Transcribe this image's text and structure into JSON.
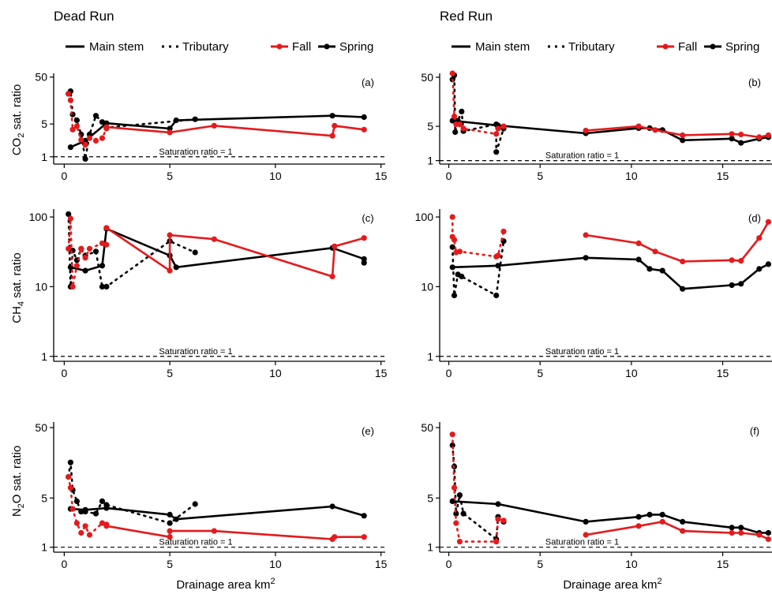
{
  "column_titles": [
    "Dead Run",
    "Red Run"
  ],
  "legend": {
    "main_stem": "Main stem",
    "tributary": "Tributary",
    "fall": "Fall",
    "spring": "Spring",
    "colors": {
      "fall": "#e41a1c",
      "spring": "#000000"
    }
  },
  "x_axis_title": "Drainage area km",
  "x_axis_title_sup": "2",
  "saturation_label": "Saturation ratio = 1",
  "row_labels": [
    {
      "pre": "CO",
      "sub": "2",
      "post": " sat. ratio"
    },
    {
      "pre": "CH",
      "sub": "4",
      "post": " sat. ratio"
    },
    {
      "pre": "N",
      "sub": "2",
      "post": "O sat. ratio"
    }
  ],
  "chart_data": [
    {
      "panel": "(a)",
      "site": "Dead Run",
      "gas": "CO2",
      "type": "line",
      "x_ticks": [
        0,
        5,
        10,
        15
      ],
      "y_ticks": [
        1,
        5,
        50
      ],
      "xlim": [
        -0.5,
        15.2
      ],
      "ylim": [
        0.7,
        60
      ],
      "y_scale": "log",
      "series": [
        {
          "season": "spring",
          "kind": "main",
          "points": [
            [
              0.3,
              1.6
            ],
            [
              1.0,
              2.2
            ],
            [
              2.0,
              5.2
            ],
            [
              5.0,
              4.0
            ],
            [
              5.3,
              6.0
            ],
            [
              12.7,
              7.5
            ],
            [
              14.2,
              7.0
            ]
          ]
        },
        {
          "season": "spring",
          "kind": "trib",
          "points": [
            [
              0.2,
              22
            ],
            [
              0.3,
              25
            ],
            [
              0.4,
              8
            ],
            [
              0.6,
              6
            ],
            [
              0.8,
              3
            ],
            [
              1.0,
              0.9
            ],
            [
              1.2,
              3
            ],
            [
              1.5,
              7.5
            ],
            [
              1.8,
              5.5
            ],
            [
              2.0,
              4.2
            ],
            [
              6.2,
              6.3
            ]
          ]
        },
        {
          "season": "fall",
          "kind": "main",
          "points": [
            [
              2.0,
              4.3
            ],
            [
              5.0,
              3.3
            ],
            [
              7.1,
              4.6
            ],
            [
              12.7,
              2.8
            ],
            [
              12.8,
              4.6
            ],
            [
              14.2,
              3.8
            ]
          ]
        },
        {
          "season": "fall",
          "kind": "trib",
          "points": [
            [
              0.2,
              22
            ],
            [
              0.3,
              16
            ],
            [
              0.4,
              3.8
            ],
            [
              0.6,
              4.5
            ],
            [
              0.8,
              2.3
            ],
            [
              1.0,
              1.8
            ],
            [
              1.2,
              2.5
            ],
            [
              1.5,
              2.2
            ],
            [
              1.8,
              2.5
            ],
            [
              2.0,
              4.0
            ]
          ]
        }
      ]
    },
    {
      "panel": "(b)",
      "site": "Red Run",
      "gas": "CO2",
      "type": "line",
      "x_ticks": [
        0,
        5,
        10,
        15
      ],
      "y_ticks": [
        1,
        5,
        50
      ],
      "xlim": [
        -0.5,
        17.7
      ],
      "ylim": [
        0.85,
        60
      ],
      "y_scale": "log",
      "series": [
        {
          "season": "spring",
          "kind": "main",
          "points": [
            [
              0.2,
              6.5
            ],
            [
              2.7,
              5.2
            ],
            [
              7.5,
              3.6
            ],
            [
              10.4,
              4.6
            ],
            [
              11.0,
              4.6
            ],
            [
              11.7,
              4.2
            ],
            [
              12.8,
              2.6
            ],
            [
              15.5,
              2.8
            ],
            [
              16.0,
              2.3
            ],
            [
              17.0,
              2.8
            ],
            [
              17.5,
              3.0
            ]
          ]
        },
        {
          "season": "spring",
          "kind": "trib",
          "points": [
            [
              0.2,
              45
            ],
            [
              0.3,
              55
            ],
            [
              0.35,
              3.8
            ],
            [
              0.5,
              6.5
            ],
            [
              0.7,
              10
            ],
            [
              0.8,
              4.0
            ],
            [
              2.6,
              5.5
            ],
            [
              2.6,
              1.5
            ],
            [
              3.0,
              4.5
            ]
          ]
        },
        {
          "season": "fall",
          "kind": "main",
          "points": [
            [
              7.5,
              4.1
            ],
            [
              10.4,
              5.0
            ],
            [
              11.3,
              4.2
            ],
            [
              12.8,
              3.3
            ],
            [
              15.5,
              3.5
            ],
            [
              16.0,
              3.4
            ],
            [
              17.0,
              3.0
            ],
            [
              17.5,
              3.3
            ]
          ]
        },
        {
          "season": "fall",
          "kind": "trib",
          "points": [
            [
              0.2,
              60
            ],
            [
              0.3,
              8
            ],
            [
              0.4,
              5.5
            ],
            [
              0.6,
              5.5
            ],
            [
              0.8,
              4.5
            ],
            [
              2.6,
              3.5
            ],
            [
              2.7,
              4.5
            ],
            [
              3.0,
              5.0
            ]
          ]
        }
      ]
    },
    {
      "panel": "(c)",
      "site": "Dead Run",
      "gas": "CH4",
      "type": "line",
      "x_ticks": [
        0,
        5,
        10,
        15
      ],
      "y_ticks": [
        1,
        10,
        100
      ],
      "xlim": [
        -0.5,
        15.2
      ],
      "ylim": [
        0.85,
        130
      ],
      "y_scale": "log",
      "series": [
        {
          "season": "spring",
          "kind": "main",
          "points": [
            [
              0.3,
              19
            ],
            [
              1.0,
              17
            ],
            [
              1.8,
              20
            ],
            [
              2.0,
              68
            ],
            [
              5.0,
              28
            ],
            [
              5.3,
              19
            ],
            [
              12.7,
              36
            ],
            [
              14.2,
              25
            ],
            [
              14.2,
              22
            ]
          ]
        },
        {
          "season": "spring",
          "kind": "trib",
          "points": [
            [
              0.2,
              110
            ],
            [
              0.3,
              10
            ],
            [
              0.4,
              33
            ],
            [
              0.6,
              24
            ],
            [
              0.8,
              35
            ],
            [
              1.0,
              28
            ],
            [
              1.5,
              32
            ],
            [
              1.8,
              10
            ],
            [
              2.0,
              10
            ],
            [
              5.0,
              45
            ],
            [
              6.2,
              31
            ]
          ]
        },
        {
          "season": "fall",
          "kind": "main",
          "points": [
            [
              2.0,
              70
            ],
            [
              5.0,
              17
            ],
            [
              5.0,
              55
            ],
            [
              7.1,
              48
            ],
            [
              12.7,
              14
            ],
            [
              12.8,
              38
            ],
            [
              14.2,
              50
            ]
          ]
        },
        {
          "season": "fall",
          "kind": "trib",
          "points": [
            [
              0.2,
              35
            ],
            [
              0.3,
              95
            ],
            [
              0.4,
              10
            ],
            [
              0.6,
              20
            ],
            [
              0.8,
              35
            ],
            [
              1.0,
              26
            ],
            [
              1.2,
              35
            ],
            [
              1.8,
              42
            ],
            [
              2.0,
              40
            ]
          ]
        }
      ]
    },
    {
      "panel": "(d)",
      "site": "Red Run",
      "gas": "CH4",
      "type": "line",
      "x_ticks": [
        0,
        5,
        10,
        15
      ],
      "y_ticks": [
        1,
        10,
        100
      ],
      "xlim": [
        -0.5,
        17.7
      ],
      "ylim": [
        0.85,
        130
      ],
      "y_scale": "log",
      "series": [
        {
          "season": "spring",
          "kind": "main",
          "points": [
            [
              0.2,
              19
            ],
            [
              2.7,
              20
            ],
            [
              7.5,
              26
            ],
            [
              10.4,
              24.5
            ],
            [
              11.0,
              18
            ],
            [
              11.7,
              17
            ],
            [
              12.8,
              9.3
            ],
            [
              15.5,
              10.5
            ],
            [
              16.0,
              11
            ],
            [
              17.0,
              18
            ],
            [
              17.5,
              21
            ]
          ]
        },
        {
          "season": "spring",
          "kind": "trib",
          "points": [
            [
              0.2,
              37
            ],
            [
              0.3,
              7.5
            ],
            [
              0.5,
              15
            ],
            [
              0.7,
              14
            ],
            [
              2.6,
              7.5
            ],
            [
              3.0,
              45
            ]
          ]
        },
        {
          "season": "fall",
          "kind": "main",
          "points": [
            [
              7.5,
              55
            ],
            [
              10.4,
              42
            ],
            [
              11.3,
              32
            ],
            [
              12.8,
              23
            ],
            [
              15.5,
              24
            ],
            [
              16.0,
              23.5
            ],
            [
              17.0,
              50
            ],
            [
              17.5,
              85
            ]
          ]
        },
        {
          "season": "fall",
          "kind": "trib",
          "points": [
            [
              0.2,
              100
            ],
            [
              0.2,
              52
            ],
            [
              0.3,
              47
            ],
            [
              0.4,
              31
            ],
            [
              0.6,
              32
            ],
            [
              2.6,
              27
            ],
            [
              2.7,
              28
            ],
            [
              3.0,
              62
            ]
          ]
        }
      ]
    },
    {
      "panel": "(e)",
      "site": "Dead Run",
      "gas": "N2O",
      "type": "line",
      "x_ticks": [
        0,
        5,
        10,
        15
      ],
      "y_ticks": [
        1,
        5,
        50
      ],
      "xlim": [
        -0.5,
        15.2
      ],
      "ylim": [
        0.85,
        60
      ],
      "y_scale": "log",
      "series": [
        {
          "season": "spring",
          "kind": "main",
          "points": [
            [
              0.3,
              3.5
            ],
            [
              1.0,
              3.4
            ],
            [
              2.0,
              3.6
            ],
            [
              5.0,
              2.9
            ],
            [
              5.3,
              2.5
            ],
            [
              12.7,
              3.8
            ],
            [
              14.2,
              2.8
            ]
          ]
        },
        {
          "season": "spring",
          "kind": "trib",
          "points": [
            [
              0.2,
              10
            ],
            [
              0.3,
              16
            ],
            [
              0.4,
              6.5
            ],
            [
              0.6,
              4.5
            ],
            [
              0.8,
              3.2
            ],
            [
              1.0,
              3.2
            ],
            [
              1.5,
              3.0
            ],
            [
              1.8,
              4.5
            ],
            [
              2.0,
              4.0
            ],
            [
              5.0,
              2.2
            ],
            [
              6.2,
              4.1
            ]
          ]
        },
        {
          "season": "fall",
          "kind": "main",
          "points": [
            [
              2.0,
              2.0
            ],
            [
              5.0,
              1.4
            ],
            [
              5.0,
              1.7
            ],
            [
              7.1,
              1.7
            ],
            [
              12.7,
              1.3
            ],
            [
              12.8,
              1.4
            ],
            [
              14.2,
              1.4
            ]
          ]
        },
        {
          "season": "fall",
          "kind": "trib",
          "points": [
            [
              0.2,
              10
            ],
            [
              0.3,
              7
            ],
            [
              0.4,
              3.5
            ],
            [
              0.6,
              2.2
            ],
            [
              0.8,
              1.6
            ],
            [
              1.0,
              2.0
            ],
            [
              1.2,
              1.5
            ],
            [
              1.8,
              2.2
            ],
            [
              2.0,
              2.1
            ]
          ]
        }
      ]
    },
    {
      "panel": "(f)",
      "site": "Red Run",
      "gas": "N2O",
      "type": "line",
      "x_ticks": [
        0,
        5,
        10,
        15
      ],
      "y_ticks": [
        1,
        5,
        50
      ],
      "xlim": [
        -0.5,
        17.7
      ],
      "ylim": [
        0.85,
        60
      ],
      "y_scale": "log",
      "series": [
        {
          "season": "spring",
          "kind": "main",
          "points": [
            [
              0.2,
              4.5
            ],
            [
              2.7,
              4.1
            ],
            [
              7.5,
              2.3
            ],
            [
              10.4,
              2.7
            ],
            [
              11.0,
              2.9
            ],
            [
              11.7,
              2.9
            ],
            [
              12.8,
              2.3
            ],
            [
              15.5,
              1.9
            ],
            [
              16.0,
              1.9
            ],
            [
              17.0,
              1.6
            ],
            [
              17.5,
              1.6
            ]
          ]
        },
        {
          "season": "spring",
          "kind": "trib",
          "points": [
            [
              0.2,
              28
            ],
            [
              0.3,
              14
            ],
            [
              0.4,
              3.0
            ],
            [
              0.6,
              5.5
            ],
            [
              0.8,
              3.0
            ],
            [
              2.6,
              1.3
            ],
            [
              2.7,
              2.7
            ],
            [
              3.0,
              2.3
            ]
          ]
        },
        {
          "season": "fall",
          "kind": "main",
          "points": [
            [
              7.5,
              1.5
            ],
            [
              10.4,
              2.0
            ],
            [
              11.7,
              2.3
            ],
            [
              12.8,
              1.7
            ],
            [
              15.5,
              1.6
            ],
            [
              16.0,
              1.6
            ],
            [
              17.0,
              1.5
            ],
            [
              17.5,
              1.3
            ]
          ]
        },
        {
          "season": "fall",
          "kind": "trib",
          "points": [
            [
              0.2,
              40
            ],
            [
              0.3,
              7
            ],
            [
              0.4,
              2.2
            ],
            [
              0.6,
              1.2
            ],
            [
              2.6,
              1.2
            ],
            [
              2.7,
              2.5
            ],
            [
              3.0,
              2.4
            ]
          ]
        }
      ]
    }
  ]
}
